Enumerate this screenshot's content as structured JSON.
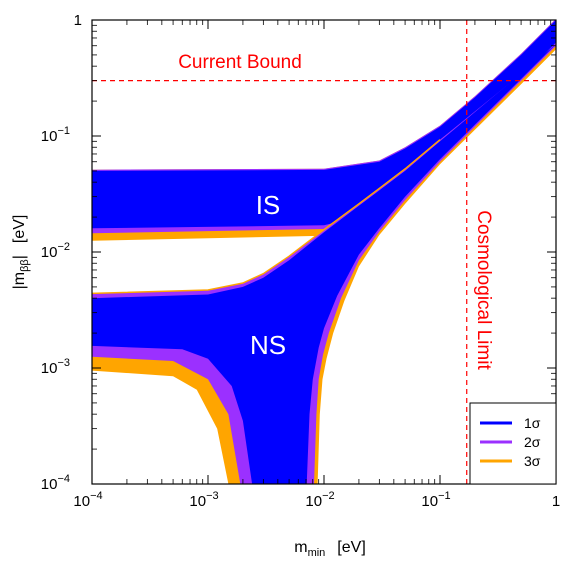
{
  "chart_data": {
    "type": "area",
    "x_scale": "log",
    "y_scale": "log",
    "xlim": [
      0.0001,
      1
    ],
    "ylim": [
      0.0001,
      1
    ],
    "xlabel": {
      "main": "m",
      "sub": "min",
      "unit": "[eV]"
    },
    "ylabel": {
      "main": "|m",
      "sub": "ββ",
      "rest": "|",
      "unit": "[eV]"
    },
    "x_ticks": [
      {
        "base": "10",
        "exp": "−4"
      },
      {
        "base": "10",
        "exp": "−3"
      },
      {
        "base": "10",
        "exp": "−2"
      },
      {
        "base": "10",
        "exp": "−1"
      },
      {
        "base": "1",
        "exp": ""
      }
    ],
    "y_ticks": [
      {
        "base": "10",
        "exp": "−4"
      },
      {
        "base": "10",
        "exp": "−3"
      },
      {
        "base": "10",
        "exp": "−2"
      },
      {
        "base": "10",
        "exp": "−1"
      },
      {
        "base": "1",
        "exp": ""
      }
    ],
    "annotations": {
      "current_bound": "Current Bound",
      "cosmological_limit": "Cosmological Limit",
      "inverted": "IS",
      "normal": "NS"
    },
    "reference_lines": {
      "current_bound_y": 0.3,
      "cosmological_limit_x": 0.17
    },
    "series": [
      {
        "name": "1σ",
        "color": "#0000ff"
      },
      {
        "name": "2σ",
        "color": "#9b30ff"
      },
      {
        "name": "3σ",
        "color": "#ffa500"
      }
    ],
    "bands": {
      "IS": {
        "upper": [
          [
            0.0001,
            0.05
          ],
          [
            0.01,
            0.051
          ],
          [
            0.03,
            0.06
          ],
          [
            0.05,
            0.078
          ],
          [
            0.1,
            0.12
          ],
          [
            0.2,
            0.215
          ],
          [
            0.5,
            0.5
          ],
          [
            1,
            1
          ]
        ],
        "lower_1s": [
          [
            0.0001,
            0.016
          ],
          [
            0.01,
            0.017
          ],
          [
            0.02,
            0.02
          ],
          [
            0.03,
            0.025
          ],
          [
            0.05,
            0.037
          ],
          [
            0.1,
            0.068
          ],
          [
            0.2,
            0.13
          ],
          [
            0.5,
            0.32
          ],
          [
            1,
            0.64
          ]
        ],
        "lower_2s": [
          [
            0.0001,
            0.0145
          ],
          [
            0.01,
            0.0158
          ],
          [
            0.02,
            0.019
          ],
          [
            0.03,
            0.024
          ],
          [
            0.05,
            0.035
          ],
          [
            0.1,
            0.064
          ],
          [
            0.2,
            0.123
          ],
          [
            0.5,
            0.3
          ],
          [
            1,
            0.6
          ]
        ],
        "lower_3s": [
          [
            0.0001,
            0.0125
          ],
          [
            0.01,
            0.0138
          ],
          [
            0.02,
            0.0173
          ],
          [
            0.03,
            0.022
          ],
          [
            0.05,
            0.033
          ],
          [
            0.1,
            0.06
          ],
          [
            0.2,
            0.115
          ],
          [
            0.5,
            0.28
          ],
          [
            1,
            0.56
          ]
        ]
      },
      "NS": {
        "upper_1s": [
          [
            0.0001,
            0.004
          ],
          [
            0.001,
            0.0043
          ],
          [
            0.002,
            0.005
          ],
          [
            0.003,
            0.006
          ],
          [
            0.005,
            0.0085
          ],
          [
            0.01,
            0.0148
          ],
          [
            0.02,
            0.025
          ],
          [
            0.05,
            0.05
          ],
          [
            0.1,
            0.09
          ]
        ],
        "upper_3s": [
          [
            0.0001,
            0.0044
          ],
          [
            0.001,
            0.0047
          ],
          [
            0.002,
            0.0054
          ],
          [
            0.003,
            0.0065
          ],
          [
            0.005,
            0.0092
          ],
          [
            0.01,
            0.0156
          ],
          [
            0.02,
            0.026
          ],
          [
            0.05,
            0.052
          ],
          [
            0.1,
            0.093
          ]
        ],
        "lower_1s": [
          [
            0.0001,
            0.00155
          ],
          [
            0.0006,
            0.00145
          ],
          [
            0.001,
            0.0012
          ],
          [
            0.0016,
            0.0007
          ],
          [
            0.002,
            0.00035
          ],
          [
            0.0024,
            0.0001
          ]
        ],
        "lower_2s": [
          [
            0.0001,
            0.00125
          ],
          [
            0.0005,
            0.00115
          ],
          [
            0.001,
            0.0008
          ],
          [
            0.0015,
            0.0004
          ],
          [
            0.0019,
            0.0001
          ]
        ],
        "lower_3s": [
          [
            0.0001,
            0.00095
          ],
          [
            0.0005,
            0.00085
          ],
          [
            0.0008,
            0.00065
          ],
          [
            0.0012,
            0.0003
          ],
          [
            0.0015,
            0.0001
          ]
        ],
        "right_1s": [
          [
            0.0071,
            0.0001
          ],
          [
            0.0075,
            0.0004
          ],
          [
            0.008,
            0.0008
          ],
          [
            0.009,
            0.0015
          ],
          [
            0.01,
            0.0022
          ],
          [
            0.013,
            0.0042
          ],
          [
            0.02,
            0.0095
          ],
          [
            0.03,
            0.016
          ],
          [
            0.05,
            0.03
          ],
          [
            0.1,
            0.063
          ],
          [
            0.2,
            0.125
          ],
          [
            0.5,
            0.31
          ],
          [
            1,
            0.62
          ]
        ],
        "right_2s": [
          [
            0.0082,
            0.0001
          ],
          [
            0.0086,
            0.0004
          ],
          [
            0.009,
            0.0008
          ],
          [
            0.0098,
            0.0013
          ],
          [
            0.011,
            0.002
          ],
          [
            0.014,
            0.004
          ],
          [
            0.02,
            0.0085
          ],
          [
            0.03,
            0.015
          ],
          [
            0.05,
            0.028
          ],
          [
            0.1,
            0.06
          ],
          [
            0.2,
            0.12
          ],
          [
            0.5,
            0.3
          ],
          [
            1,
            0.6
          ]
        ],
        "right_3s": [
          [
            0.0088,
            0.0001
          ],
          [
            0.0092,
            0.0004
          ],
          [
            0.0097,
            0.0008
          ],
          [
            0.0105,
            0.0012
          ],
          [
            0.012,
            0.002
          ],
          [
            0.015,
            0.0038
          ],
          [
            0.02,
            0.0075
          ],
          [
            0.03,
            0.014
          ],
          [
            0.05,
            0.026
          ],
          [
            0.1,
            0.057
          ],
          [
            0.2,
            0.113
          ],
          [
            0.5,
            0.28
          ],
          [
            1,
            0.56
          ]
        ]
      }
    }
  }
}
